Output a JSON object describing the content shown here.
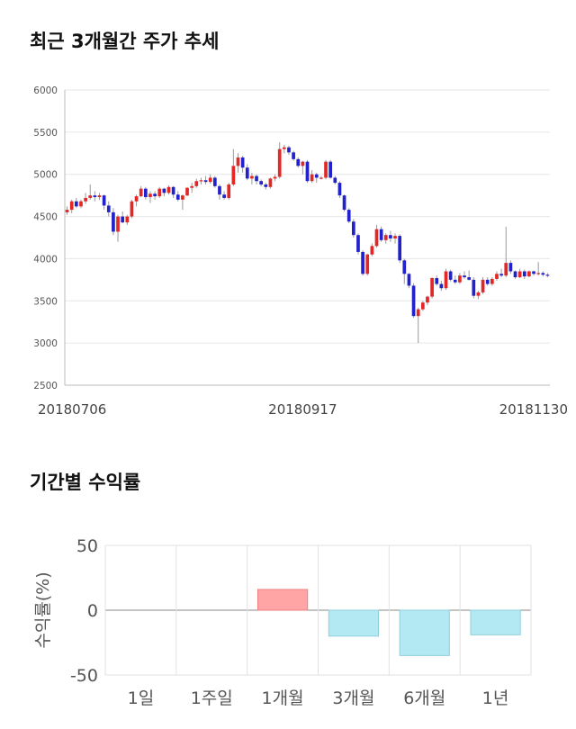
{
  "sections": {
    "price_title": "최근 3개월간 주가 추세",
    "returns_title": "기간별 수익률"
  },
  "chart_data": [
    {
      "type": "candlestick",
      "title": "최근 3개월간 주가 추세",
      "ylim": [
        2500,
        6000
      ],
      "yticks": [
        6000,
        5500,
        5000,
        4500,
        4000,
        3500,
        3000,
        2500
      ],
      "xtick_labels": [
        "20180706",
        "20180917",
        "20181130"
      ],
      "xtick_index": [
        0,
        51,
        104
      ],
      "grid": true,
      "up_color": "#e32626",
      "down_color": "#2222cc",
      "candles": [
        [
          4550,
          4620,
          4520,
          4580
        ],
        [
          4580,
          4700,
          4540,
          4680
        ],
        [
          4680,
          4720,
          4600,
          4620
        ],
        [
          4620,
          4700,
          4600,
          4680
        ],
        [
          4680,
          4780,
          4650,
          4720
        ],
        [
          4720,
          4880,
          4700,
          4750
        ],
        [
          4750,
          4800,
          4680,
          4730
        ],
        [
          4730,
          4780,
          4700,
          4750
        ],
        [
          4750,
          4760,
          4580,
          4630
        ],
        [
          4630,
          4680,
          4500,
          4550
        ],
        [
          4550,
          4600,
          4280,
          4320
        ],
        [
          4320,
          4520,
          4200,
          4500
        ],
        [
          4500,
          4560,
          4420,
          4430
        ],
        [
          4430,
          4520,
          4400,
          4500
        ],
        [
          4500,
          4700,
          4480,
          4680
        ],
        [
          4680,
          4760,
          4620,
          4740
        ],
        [
          4740,
          4860,
          4730,
          4830
        ],
        [
          4830,
          4850,
          4700,
          4730
        ],
        [
          4730,
          4800,
          4660,
          4770
        ],
        [
          4770,
          4800,
          4700,
          4740
        ],
        [
          4740,
          4850,
          4720,
          4830
        ],
        [
          4830,
          4840,
          4740,
          4780
        ],
        [
          4780,
          4870,
          4760,
          4850
        ],
        [
          4850,
          4860,
          4720,
          4760
        ],
        [
          4760,
          4800,
          4680,
          4700
        ],
        [
          4700,
          4760,
          4580,
          4750
        ],
        [
          4750,
          4850,
          4740,
          4840
        ],
        [
          4840,
          4900,
          4780,
          4860
        ],
        [
          4860,
          4950,
          4840,
          4920
        ],
        [
          4920,
          4960,
          4880,
          4930
        ],
        [
          4930,
          4980,
          4880,
          4910
        ],
        [
          4910,
          5000,
          4890,
          4960
        ],
        [
          4960,
          4980,
          4840,
          4860
        ],
        [
          4860,
          4880,
          4700,
          4760
        ],
        [
          4760,
          4800,
          4700,
          4720
        ],
        [
          4720,
          4900,
          4700,
          4880
        ],
        [
          4880,
          5300,
          4860,
          5100
        ],
        [
          5100,
          5250,
          5020,
          5200
        ],
        [
          5200,
          5220,
          5020,
          5080
        ],
        [
          5080,
          5120,
          4930,
          4950
        ],
        [
          4950,
          5020,
          4880,
          4980
        ],
        [
          4980,
          5000,
          4880,
          4920
        ],
        [
          4920,
          4940,
          4860,
          4880
        ],
        [
          4880,
          4900,
          4820,
          4850
        ],
        [
          4850,
          4960,
          4830,
          4950
        ],
        [
          4950,
          5000,
          4920,
          4970
        ],
        [
          4970,
          5380,
          4950,
          5300
        ],
        [
          5300,
          5350,
          5250,
          5320
        ],
        [
          5320,
          5340,
          5230,
          5260
        ],
        [
          5260,
          5280,
          5160,
          5180
        ],
        [
          5180,
          5200,
          5080,
          5100
        ],
        [
          5100,
          5160,
          5000,
          5150
        ],
        [
          5150,
          5170,
          4900,
          4920
        ],
        [
          4920,
          5050,
          4900,
          5000
        ],
        [
          5000,
          5020,
          4900,
          4960
        ],
        [
          4960,
          4980,
          4940,
          4960
        ],
        [
          4960,
          5170,
          4940,
          5150
        ],
        [
          5150,
          5170,
          4950,
          4960
        ],
        [
          4960,
          4980,
          4880,
          4900
        ],
        [
          4900,
          4920,
          4720,
          4750
        ],
        [
          4750,
          4760,
          4560,
          4580
        ],
        [
          4580,
          4600,
          4420,
          4440
        ],
        [
          4440,
          4470,
          4250,
          4280
        ],
        [
          4280,
          4300,
          4050,
          4080
        ],
        [
          4080,
          4100,
          3800,
          3820
        ],
        [
          3820,
          4060,
          3800,
          4050
        ],
        [
          4050,
          4180,
          4030,
          4150
        ],
        [
          4150,
          4400,
          4130,
          4350
        ],
        [
          4350,
          4380,
          4200,
          4220
        ],
        [
          4220,
          4300,
          4180,
          4280
        ],
        [
          4280,
          4330,
          4200,
          4240
        ],
        [
          4240,
          4300,
          4180,
          4270
        ],
        [
          4270,
          4290,
          3950,
          3980
        ],
        [
          3980,
          4000,
          3700,
          3820
        ],
        [
          3820,
          3830,
          3650,
          3680
        ],
        [
          3680,
          3710,
          3300,
          3320
        ],
        [
          3320,
          3420,
          3000,
          3400
        ],
        [
          3400,
          3500,
          3380,
          3480
        ],
        [
          3480,
          3560,
          3450,
          3550
        ],
        [
          3550,
          3780,
          3530,
          3770
        ],
        [
          3770,
          3800,
          3680,
          3700
        ],
        [
          3700,
          3740,
          3620,
          3650
        ],
        [
          3650,
          3880,
          3630,
          3850
        ],
        [
          3850,
          3870,
          3730,
          3750
        ],
        [
          3750,
          3800,
          3700,
          3720
        ],
        [
          3720,
          3830,
          3700,
          3800
        ],
        [
          3800,
          3850,
          3760,
          3780
        ],
        [
          3780,
          3860,
          3740,
          3750
        ],
        [
          3750,
          3780,
          3530,
          3560
        ],
        [
          3560,
          3620,
          3520,
          3600
        ],
        [
          3600,
          3780,
          3580,
          3750
        ],
        [
          3750,
          3780,
          3680,
          3700
        ],
        [
          3700,
          3780,
          3680,
          3760
        ],
        [
          3760,
          3850,
          3740,
          3820
        ],
        [
          3820,
          3880,
          3780,
          3800
        ],
        [
          3800,
          4380,
          3780,
          3950
        ],
        [
          3950,
          3980,
          3820,
          3850
        ],
        [
          3850,
          3860,
          3760,
          3780
        ],
        [
          3780,
          3880,
          3770,
          3850
        ],
        [
          3850,
          3870,
          3760,
          3790
        ],
        [
          3790,
          3860,
          3780,
          3850
        ],
        [
          3850,
          3860,
          3800,
          3820
        ],
        [
          3820,
          3960,
          3800,
          3830
        ],
        [
          3830,
          3850,
          3790,
          3810
        ],
        [
          3810,
          3830,
          3780,
          3800
        ]
      ]
    },
    {
      "type": "bar",
      "title": "기간별 수익률",
      "ylabel": "수익률(%)",
      "ylim": [
        -50,
        50
      ],
      "yticks": [
        50,
        0,
        -50
      ],
      "categories": [
        "1일",
        "1주일",
        "1개월",
        "3개월",
        "6개월",
        "1년"
      ],
      "values": [
        0,
        0,
        16,
        -20,
        -35,
        -19
      ],
      "grid": true,
      "positive_color": "#ffa5a5",
      "negative_color": "#b3e9f2"
    }
  ]
}
